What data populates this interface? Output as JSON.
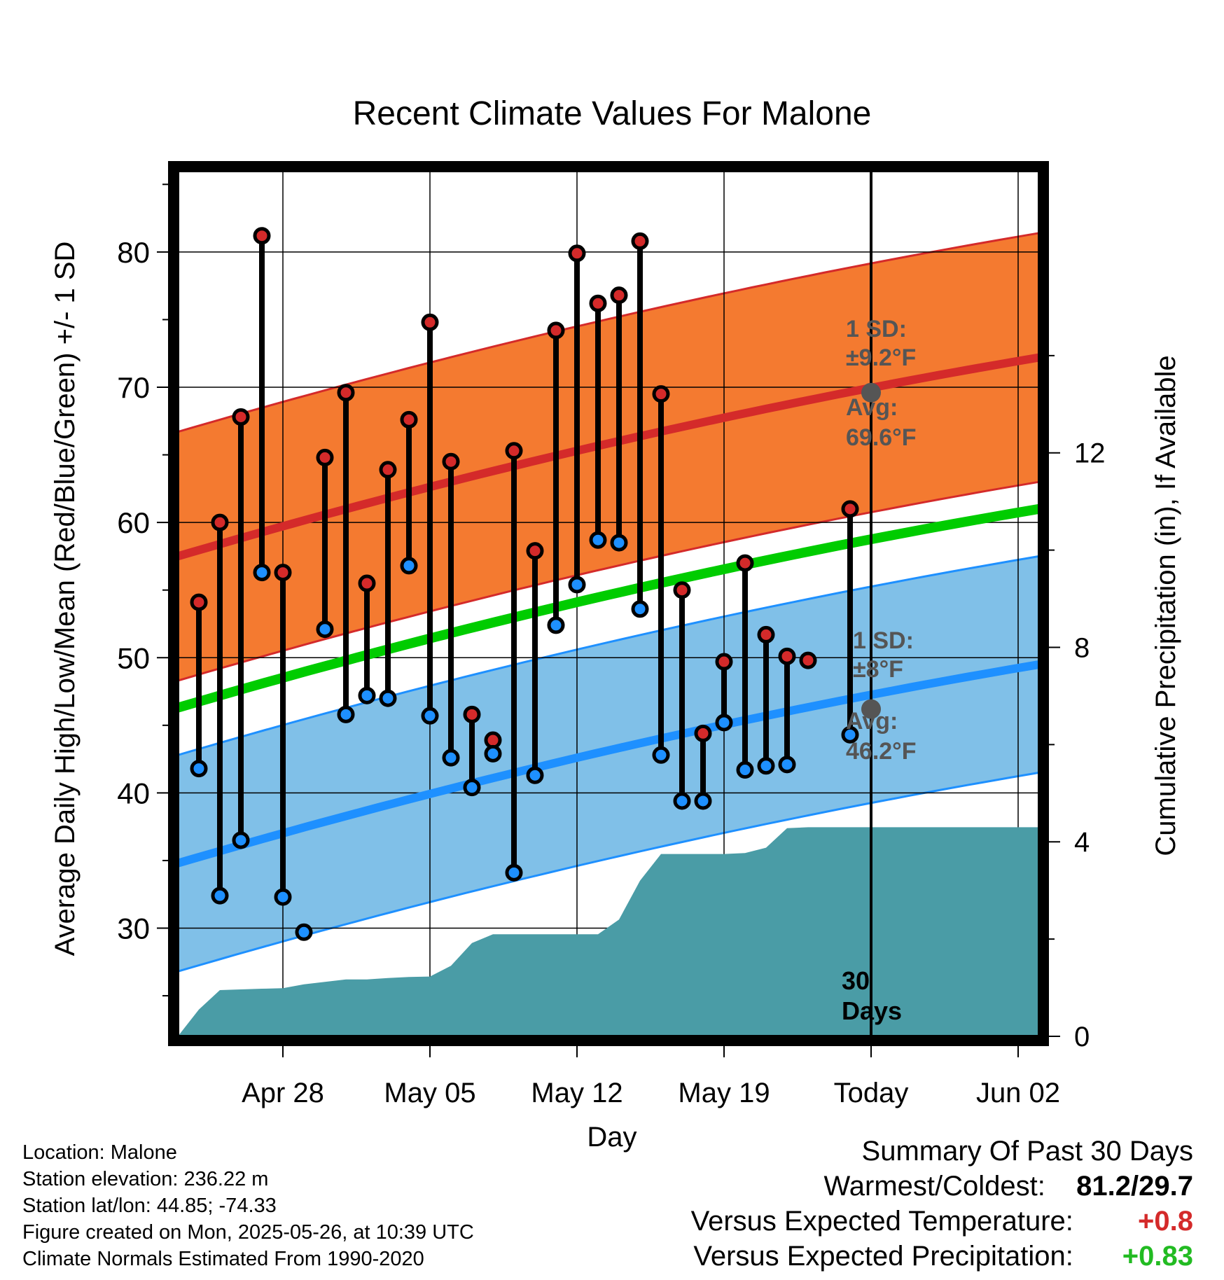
{
  "title": "Recent Climate Values For Malone",
  "xlabel": "Day",
  "ylabel_left": "Average Daily High/Low/Mean (Red/Blue/Green) +/- 1 SD",
  "ylabel_right": "Cumulative Precipitation (in), If Available",
  "x_tick_labels": [
    "Apr 28",
    "May 05",
    "May 12",
    "May 19",
    "Today",
    "Jun 02"
  ],
  "y_left_ticks": [
    "30",
    "40",
    "50",
    "60",
    "70",
    "80"
  ],
  "y_right_ticks": [
    "0",
    "4",
    "8",
    "12"
  ],
  "annotations": {
    "high_sd_label": "1 SD:",
    "high_sd_value": "±9.2°F",
    "high_avg_label": "Avg:",
    "high_avg_value": "69.6°F",
    "low_sd_label": "1 SD:",
    "low_sd_value": "±8°F",
    "low_avg_label": "Avg:",
    "low_avg_value": "46.2°F",
    "window_label_1": "30",
    "window_label_2": "Days"
  },
  "info": {
    "location": "Location: Malone",
    "elevation": "Station elevation: 236.22 m",
    "latlon": "Station lat/lon: 44.85; -74.33",
    "created": "Figure created on Mon, 2025-05-26, at 10:39 UTC",
    "normals": "Climate Normals Estimated From 1990-2020"
  },
  "summary": {
    "heading": "Summary Of Past 30 Days",
    "warm_cold_label": "Warmest/Coldest:",
    "warm_cold_value": "81.2/29.7",
    "temp_label": "Versus Expected Temperature:",
    "temp_value": "+0.8",
    "precip_label": "Versus Expected Precipitation:",
    "precip_value": "+0.83"
  },
  "colors": {
    "high_band": "#f47a30",
    "high_line": "#d42a2a",
    "low_band": "#80c0e8",
    "low_line": "#1e90ff",
    "mean_line": "#00cc00",
    "precip": "#4a9ca6",
    "temp_anomaly": "#d42a2a",
    "precip_anomaly": "#22bb22"
  },
  "chart_data": {
    "type": "line",
    "x_range_days": [
      -33,
      8
    ],
    "ylim_temp": [
      22,
      86
    ],
    "ylim_precip": [
      0,
      17.8
    ],
    "daily_days": [
      -32,
      -31,
      -30,
      -29,
      -28,
      -27,
      -26,
      -25,
      -24,
      -23,
      -22,
      -21,
      -20,
      -19,
      -18,
      -17,
      -16,
      -15,
      -14,
      -13,
      -12,
      -11,
      -10,
      -9,
      -8,
      -7,
      -6,
      -5,
      -4,
      -3,
      -2,
      -1
    ],
    "daily_high": [
      54.1,
      60.0,
      67.8,
      81.2,
      56.3,
      64.8,
      69.6,
      55.5,
      63.9,
      67.6,
      74.8,
      64.5,
      45.8,
      43.9,
      65.3,
      57.9,
      74.2,
      79.9,
      76.2,
      76.8,
      80.8,
      69.5,
      55.0,
      44.4,
      49.7,
      57.0,
      51.7,
      50.1,
      49.8,
      61.0
    ],
    "daily_high_days": [
      -32,
      -31,
      -30,
      -29,
      -28,
      -26,
      -25,
      -24,
      -23,
      -22,
      -21,
      -20,
      -19,
      -18,
      -17,
      -16,
      -15,
      -14,
      -13,
      -12,
      -11,
      -10,
      -9,
      -8,
      -7,
      -6,
      -5,
      -4,
      -3,
      -1
    ],
    "daily_low": [
      41.8,
      32.4,
      36.5,
      56.3,
      32.3,
      29.7,
      52.1,
      45.8,
      47.2,
      47.0,
      56.8,
      45.7,
      42.6,
      40.4,
      42.9,
      34.1,
      41.3,
      52.4,
      55.4,
      58.7,
      58.5,
      53.6,
      42.8,
      39.4,
      39.4,
      45.2,
      41.7,
      42.0,
      42.1,
      44.3
    ],
    "daily_low_days": [
      -32,
      -31,
      -30,
      -29,
      -28,
      -27,
      -26,
      -25,
      -24,
      -23,
      -22,
      -21,
      -20,
      -19,
      -18,
      -17,
      -16,
      -15,
      -14,
      -13,
      -12,
      -11,
      -10,
      -9,
      -8,
      -7,
      -6,
      -5,
      -4,
      -1
    ],
    "normal_days": [
      -33,
      8
    ],
    "normal_high": [
      57.5,
      72.2
    ],
    "normal_high_sd": 9.2,
    "normal_low": [
      34.8,
      49.5
    ],
    "normal_low_sd": 8.0,
    "normal_mean": [
      46.3,
      61.0
    ],
    "today_avg_high": 69.6,
    "today_avg_low": 46.2,
    "precip_days": [
      -33,
      -32,
      -31,
      -29,
      -28,
      -27,
      -26,
      -25,
      -24,
      -23,
      -22,
      -21,
      -20,
      -19,
      -18,
      -17,
      -16,
      -15,
      -14,
      -13,
      -12,
      -11,
      -10,
      -9,
      -8,
      -7,
      -6,
      -5,
      -4,
      -3,
      -2,
      0,
      8
    ],
    "precip_cum": [
      0.0,
      0.55,
      0.95,
      0.98,
      0.99,
      1.07,
      1.12,
      1.17,
      1.17,
      1.2,
      1.22,
      1.23,
      1.45,
      1.92,
      2.1,
      2.1,
      2.1,
      2.1,
      2.1,
      2.1,
      2.4,
      3.2,
      3.75,
      3.75,
      3.75,
      3.75,
      3.77,
      3.88,
      4.28,
      4.3,
      4.3,
      4.3,
      4.3
    ]
  }
}
